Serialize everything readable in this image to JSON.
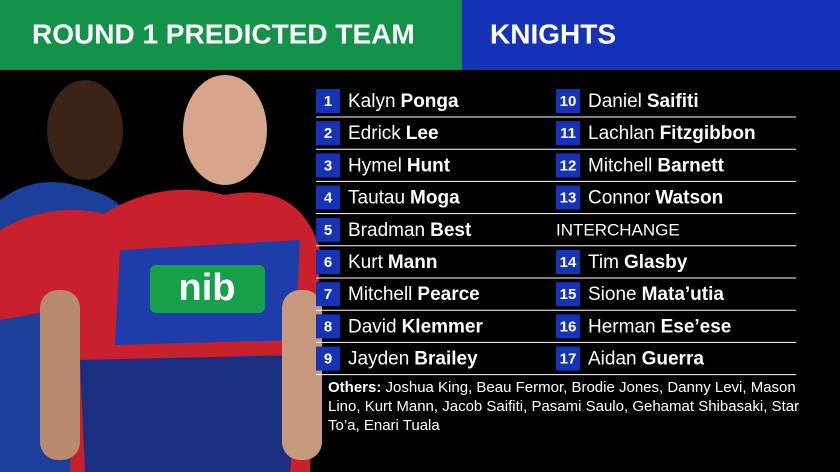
{
  "header": {
    "title": "ROUND 1 PREDICTED TEAM",
    "team": "KNIGHTS"
  },
  "players": [
    {
      "number": 1,
      "first": "Kalyn",
      "last": "Ponga"
    },
    {
      "number": 2,
      "first": "Edrick",
      "last": "Lee"
    },
    {
      "number": 3,
      "first": "Hymel",
      "last": "Hunt"
    },
    {
      "number": 4,
      "first": "Tautau",
      "last": "Moga"
    },
    {
      "number": 5,
      "first": "Bradman",
      "last": "Best"
    },
    {
      "number": 6,
      "first": "Kurt",
      "last": "Mann"
    },
    {
      "number": 7,
      "first": "Mitchell",
      "last": "Pearce"
    },
    {
      "number": 8,
      "first": "David",
      "last": "Klemmer"
    },
    {
      "number": 9,
      "first": "Jayden",
      "last": "Brailey"
    },
    {
      "number": 10,
      "first": "Daniel",
      "last": "Saifiti"
    },
    {
      "number": 11,
      "first": "Lachlan",
      "last": "Fitzgibbon"
    },
    {
      "number": 12,
      "first": "Mitchell",
      "last": "Barnett"
    },
    {
      "number": 13,
      "first": "Connor",
      "last": "Watson"
    },
    {
      "number": 14,
      "first": "Tim",
      "last": "Glasby"
    },
    {
      "number": 15,
      "first": "Sione",
      "last": "Mata’utia"
    },
    {
      "number": 16,
      "first": "Herman",
      "last": "Ese’ese"
    },
    {
      "number": 17,
      "first": "Aidan",
      "last": "Guerra"
    }
  ],
  "interchange_label": "INTERCHANGE",
  "others": {
    "label": "Others:",
    "names": "Joshua King, Beau Fermor, Brodie Jones, Danny Levi, Mason Lino, Kurt Mann, Jacob Saifiti, Pasami Saulo, Gehamat Shibasaki, Star To’a, Enari Tuala"
  }
}
